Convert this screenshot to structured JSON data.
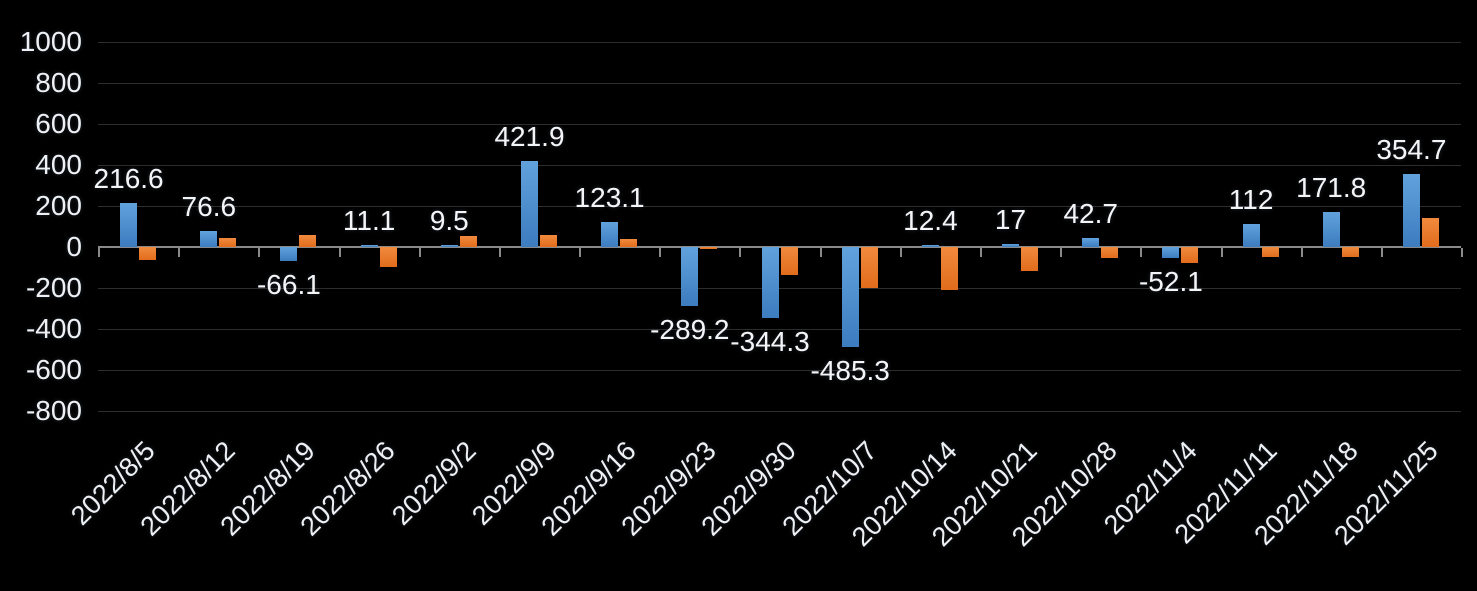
{
  "chart_data": {
    "type": "bar",
    "title": "",
    "legend_position": "none",
    "grid": true,
    "categories": [
      "2022/8/5",
      "2022/8/12",
      "2022/8/19",
      "2022/8/26",
      "2022/9/2",
      "2022/9/9",
      "2022/9/16",
      "2022/9/23",
      "2022/9/30",
      "2022/10/7",
      "2022/10/14",
      "2022/10/21",
      "2022/10/28",
      "2022/11/4",
      "2022/11/11",
      "2022/11/18",
      "2022/11/25"
    ],
    "series": [
      {
        "id": "blue",
        "color_top": "#61A2DD",
        "color_bottom": "#3C7CBF",
        "values": [
          216.6,
          76.6,
          -66.1,
          11.1,
          9.5,
          421.9,
          123.1,
          -289.2,
          -344.3,
          -485.3,
          12.4,
          17,
          42.7,
          -52.1,
          112,
          171.8,
          354.7
        ],
        "data_labels": [
          "216.6",
          "76.6",
          "-66.1",
          "11.1",
          "9.5",
          "421.9",
          "123.1",
          "-289.2",
          "-344.3",
          "-485.3",
          "12.4",
          "17",
          "42.7",
          "-52.1",
          "112",
          "171.8",
          "354.7"
        ]
      },
      {
        "id": "orange",
        "color_top": "#F18A3E",
        "color_bottom": "#E16C1C",
        "values": [
          -65,
          45,
          58,
          -95,
          55,
          60,
          38,
          -10,
          -135,
          -200,
          -210,
          -115,
          -55,
          -80,
          -50,
          -50,
          140
        ],
        "data_labels": []
      }
    ],
    "xlabel": "",
    "ylabel": "",
    "ylim": [
      -800,
      1000
    ],
    "ytick_step": 200,
    "yticks": [
      1000,
      800,
      600,
      400,
      200,
      0,
      -200,
      -400,
      -600,
      -800
    ],
    "colors": {
      "background": "#000000",
      "gridline": "#2D2D2D",
      "axis": "#8A8A8A",
      "tick_text": "#EDF0F4",
      "data_label_text": "#F4F5F7"
    }
  }
}
